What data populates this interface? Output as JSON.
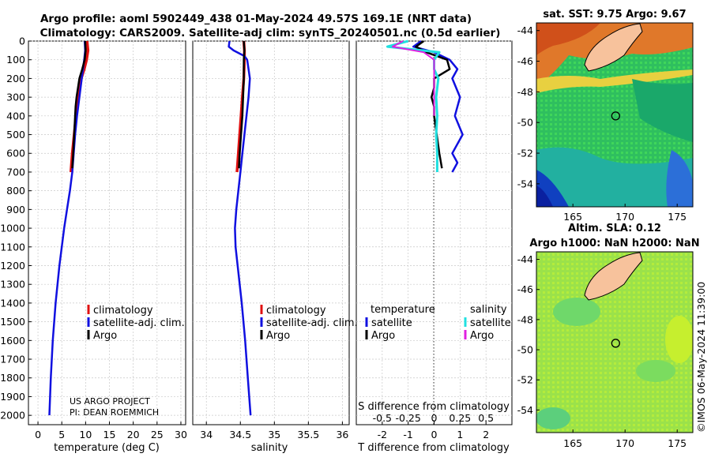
{
  "title_line1": "Argo profile: aoml 5902449_438 01-May-2024 49.57S 169.1E (NRT data)",
  "title_line2": "Climatology: CARS2009. Satellite-adj clim: synTS_20240501.nc (0.5d earlier)",
  "credit": "US ARGO PROJECT",
  "pi": "PI: DEAN ROEMMICH",
  "watermark": "©IMOS 06-May-2024 11:39:00",
  "colors": {
    "climatology": "#e01010",
    "satellite": "#1010e0",
    "argo": "#000000",
    "sat_salinity": "#20e0e0",
    "argo_salinity": "#e020e0",
    "land": "#f7c29c"
  },
  "chart_data": [
    {
      "type": "line",
      "id": "temperature",
      "xlabel": "temperature (deg C)",
      "ylabel": "",
      "xlim": [
        -2,
        31
      ],
      "ylim": [
        2050,
        0
      ],
      "xticks": [
        0,
        5,
        10,
        15,
        20,
        25,
        30
      ],
      "yticks": [
        0,
        100,
        200,
        300,
        400,
        500,
        600,
        700,
        800,
        900,
        1000,
        1100,
        1200,
        1300,
        1400,
        1500,
        1600,
        1700,
        1800,
        1900,
        2000
      ],
      "legend": [
        "climatology",
        "satellite-adj. clim.",
        "Argo"
      ],
      "series": [
        {
          "name": "climatology",
          "depth": [
            0,
            50,
            100,
            150,
            200,
            300,
            400,
            500,
            600,
            700
          ],
          "values": [
            10.3,
            10.5,
            10.2,
            9.7,
            9.1,
            8.5,
            8.0,
            7.6,
            7.2,
            6.9
          ]
        },
        {
          "name": "satellite-adj. clim.",
          "depth": [
            0,
            50,
            100,
            200,
            300,
            400,
            500,
            600,
            700,
            800,
            900,
            1000,
            1200,
            1400,
            1600,
            1800,
            2000
          ],
          "values": [
            9.8,
            9.9,
            9.7,
            9.2,
            8.7,
            8.2,
            7.8,
            7.5,
            7.2,
            6.7,
            6.1,
            5.5,
            4.5,
            3.7,
            3.1,
            2.7,
            2.4
          ]
        },
        {
          "name": "Argo",
          "depth": [
            0,
            50,
            100,
            150,
            200,
            250,
            300,
            350,
            400,
            500,
            600,
            680
          ],
          "values": [
            9.9,
            10.0,
            9.8,
            9.3,
            8.7,
            8.4,
            8.1,
            7.9,
            7.8,
            7.6,
            7.4,
            7.2
          ]
        }
      ]
    },
    {
      "type": "line",
      "id": "salinity",
      "xlabel": "salinity",
      "ylabel": "",
      "xlim": [
        33.8,
        36.1
      ],
      "ylim": [
        2050,
        0
      ],
      "xticks": [
        34,
        34.5,
        35,
        35.5,
        36
      ],
      "legend": [
        "climatology",
        "satellite-adj. clim.",
        "Argo"
      ],
      "series": [
        {
          "name": "climatology",
          "depth": [
            0,
            50,
            100,
            200,
            300,
            400,
            500,
            600,
            700
          ],
          "values": [
            34.55,
            34.56,
            34.56,
            34.55,
            34.53,
            34.51,
            34.49,
            34.47,
            34.45
          ]
        },
        {
          "name": "satellite-adj. clim.",
          "depth": [
            0,
            30,
            50,
            80,
            100,
            150,
            200,
            300,
            400,
            500,
            600,
            700,
            800,
            900,
            1000,
            1100,
            1200,
            1400,
            1600,
            1800,
            2000
          ],
          "values": [
            34.34,
            34.33,
            34.4,
            34.56,
            34.6,
            34.62,
            34.64,
            34.62,
            34.59,
            34.56,
            34.53,
            34.5,
            34.47,
            34.44,
            34.42,
            34.43,
            34.46,
            34.52,
            34.57,
            34.61,
            34.65
          ]
        },
        {
          "name": "Argo",
          "depth": [
            0,
            50,
            100,
            200,
            300,
            400,
            500,
            600,
            680
          ],
          "values": [
            34.55,
            34.56,
            34.55,
            34.55,
            34.54,
            34.53,
            34.51,
            34.49,
            34.48
          ]
        }
      ]
    },
    {
      "type": "line",
      "id": "difference",
      "xlabel": "T difference from climatology",
      "top_xlabel": "S difference from climatology",
      "xlim": [
        -3,
        3
      ],
      "ylim": [
        2050,
        0
      ],
      "xticks": [
        -2,
        -1,
        0,
        1,
        2
      ],
      "top_xticks": [
        "-0.5",
        "-0.25",
        "0",
        "0.25",
        "0.5"
      ],
      "legend_temperature_title": "temperature",
      "legend_salinity_title": "salinity",
      "legend_temperature": [
        "satellite",
        "Argo"
      ],
      "legend_salinity": [
        "satellite",
        "Argo"
      ],
      "series": [
        {
          "name": "T satellite",
          "depth": [
            0,
            30,
            60,
            100,
            150,
            200,
            300,
            400,
            500,
            600,
            650,
            700
          ],
          "values": [
            -0.5,
            -0.8,
            0.0,
            0.6,
            0.9,
            0.7,
            1.0,
            0.8,
            1.1,
            0.7,
            0.9,
            0.7
          ]
        },
        {
          "name": "T Argo",
          "depth": [
            0,
            30,
            60,
            100,
            150,
            200,
            250,
            300,
            350,
            400,
            500,
            600,
            680
          ],
          "values": [
            -0.4,
            -0.7,
            -0.3,
            0.5,
            0.6,
            0.0,
            0.0,
            -0.1,
            0.0,
            0.0,
            0.1,
            0.2,
            0.3
          ]
        },
        {
          "name": "S satellite",
          "depth": [
            0,
            30,
            60,
            100,
            150,
            200,
            300,
            400,
            500,
            600,
            700
          ],
          "values": [
            -0.25,
            -0.45,
            0.05,
            0.0,
            0.0,
            0.04,
            0.02,
            0.03,
            0.02,
            0.03,
            0.03
          ]
        },
        {
          "name": "S Argo",
          "depth": [
            0,
            30,
            60,
            100,
            150,
            200,
            300,
            400
          ],
          "values": [
            -0.3,
            -0.4,
            -0.1,
            0.0,
            0.0,
            0.0,
            0.0,
            0.0
          ]
        }
      ]
    },
    {
      "type": "heatmap",
      "id": "sst-map",
      "title": "sat. SST: 9.75 Argo: 9.67",
      "xticks": [
        165,
        170,
        175
      ],
      "yticks": [
        -44,
        -46,
        -48,
        -50,
        -52,
        -54
      ],
      "xlim": [
        161.5,
        176.5
      ],
      "ylim": [
        -55.5,
        -43.5
      ],
      "argo_position": {
        "lon": 169.1,
        "lat": -49.57
      }
    },
    {
      "type": "heatmap",
      "id": "sla-map",
      "title": "Altim. SLA: 0.12",
      "subtitle": "Argo h1000: NaN h2000: NaN",
      "xticks": [
        165,
        170,
        175
      ],
      "yticks": [
        -44,
        -46,
        -48,
        -50,
        -52,
        -54
      ],
      "xlim": [
        161.5,
        176.5
      ],
      "ylim": [
        -55.5,
        -43.5
      ],
      "argo_position": {
        "lon": 169.1,
        "lat": -49.57
      }
    }
  ]
}
